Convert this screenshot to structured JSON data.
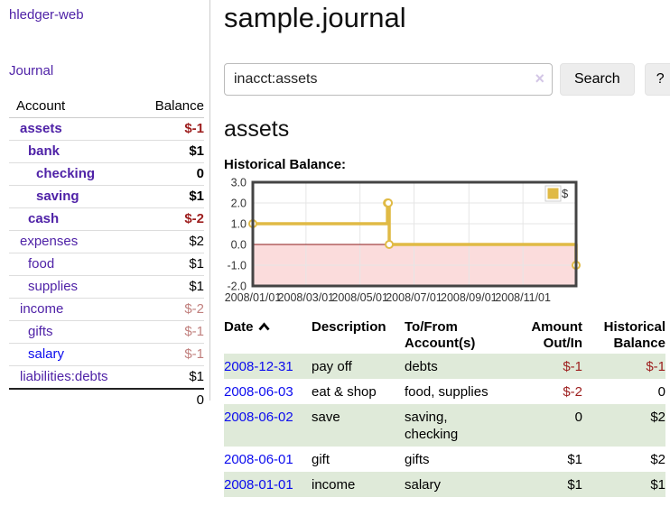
{
  "app": {
    "brand": "hledger-web",
    "nav_journal": "Journal"
  },
  "sidebar": {
    "columns": {
      "account": "Account",
      "balance": "Balance"
    },
    "accounts": [
      {
        "name": "assets",
        "depth": 1,
        "balance": "$-1"
      },
      {
        "name": "bank",
        "depth": 2,
        "balance": "$1"
      },
      {
        "name": "checking",
        "depth": 3,
        "balance": "0"
      },
      {
        "name": "saving",
        "depth": 3,
        "balance": "$1"
      },
      {
        "name": "cash",
        "depth": 2,
        "balance": "$-2"
      },
      {
        "name": "expenses",
        "depth": 1,
        "balance": "$2"
      },
      {
        "name": "food",
        "depth": 2,
        "balance": "$1"
      },
      {
        "name": "supplies",
        "depth": 2,
        "balance": "$1"
      },
      {
        "name": "income",
        "depth": 1,
        "balance": "$-2"
      },
      {
        "name": "gifts",
        "depth": 2,
        "balance": "$-1"
      },
      {
        "name": "salary",
        "depth": 2,
        "balance": "$-1"
      },
      {
        "name": "liabilities:debts",
        "depth": 1,
        "balance": "$1"
      }
    ],
    "total": "0"
  },
  "header": {
    "title": "sample.journal"
  },
  "search": {
    "value": "inacct:assets",
    "clear_icon": "×",
    "button_label": "Search",
    "help_label": "?",
    "sort_icon": "chevron-up"
  },
  "account_page": {
    "heading": "assets",
    "chart_label": "Historical Balance:"
  },
  "chart_data": {
    "type": "line",
    "title": "Historical Balance:",
    "step": true,
    "series": [
      {
        "name": "$",
        "points": [
          {
            "date": "2008-01-01",
            "value": 1
          },
          {
            "date": "2008-06-01",
            "value": 2
          },
          {
            "date": "2008-06-02",
            "value": 2
          },
          {
            "date": "2008-06-03",
            "value": 0
          },
          {
            "date": "2008-12-31",
            "value": -1
          }
        ]
      }
    ],
    "x_ticks": [
      {
        "date": "2008-01-01",
        "label": "2008/01/01"
      },
      {
        "date": "2008-03-01",
        "label": "2008/03/01"
      },
      {
        "date": "2008-05-01",
        "label": "2008/05/01"
      },
      {
        "date": "2008-07-01",
        "label": "2008/07/01"
      },
      {
        "date": "2008-09-01",
        "label": "2008/09/01"
      },
      {
        "date": "2008-11-01",
        "label": "2008/11/01"
      }
    ],
    "y_ticks": [
      "3.0",
      "2.0",
      "1.0",
      "0.0",
      "-1.0",
      "-2.0"
    ],
    "ylim": [
      -2,
      3
    ],
    "xlim": [
      "2008-01-01",
      "2008-12-31"
    ],
    "grid": true,
    "legend_position": "top-right",
    "colors": {
      "line": "#e0ba45",
      "marker_fill": "#ffffff",
      "negative_fill": "#fbdcdc",
      "zero_line": "#8b1a1a",
      "border": "#444444",
      "grid": "#e6e6e6",
      "tick_text": "#333333"
    }
  },
  "register": {
    "columns": {
      "date": "Date",
      "description": "Description",
      "accounts": "To/From Account(s)",
      "amount": "Amount Out/In",
      "balance": "Historical Balance"
    },
    "rows": [
      {
        "date": "2008-12-31",
        "description": "pay off",
        "accounts": "debts",
        "amount": "$-1",
        "balance": "$-1"
      },
      {
        "date": "2008-06-03",
        "description": "eat & shop",
        "accounts": "food, supplies",
        "amount": "$-2",
        "balance": "0"
      },
      {
        "date": "2008-06-02",
        "description": "save",
        "accounts": "saving, checking",
        "amount": "0",
        "balance": "$2"
      },
      {
        "date": "2008-06-01",
        "description": "gift",
        "accounts": "gifts",
        "amount": "$1",
        "balance": "$2"
      },
      {
        "date": "2008-01-01",
        "description": "income",
        "accounts": "salary",
        "amount": "$1",
        "balance": "$1"
      }
    ]
  }
}
